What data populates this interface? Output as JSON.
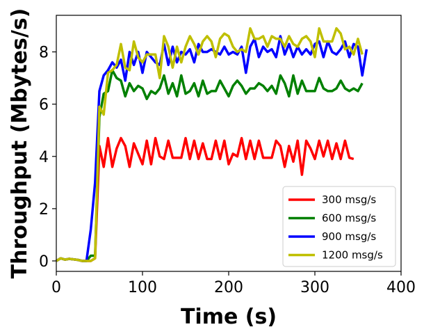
{
  "chart_data": {
    "type": "line",
    "title": "",
    "xlabel": "Time (s)",
    "ylabel": "Throughput (Mbytes/s)",
    "xlim": [
      0,
      400
    ],
    "ylim": [
      -0.4,
      9.4
    ],
    "xticks": [
      0,
      100,
      200,
      300,
      400
    ],
    "yticks": [
      0,
      2,
      4,
      6,
      8
    ],
    "grid": false,
    "legend_position": "bottom-right",
    "series": [
      {
        "name": "300 msg/s",
        "color": "#ff0000",
        "x": [
          0,
          5,
          10,
          15,
          20,
          25,
          30,
          35,
          40,
          45,
          50,
          55,
          60,
          65,
          70,
          75,
          80,
          85,
          90,
          95,
          100,
          105,
          110,
          115,
          120,
          125,
          130,
          135,
          140,
          145,
          150,
          155,
          160,
          165,
          170,
          175,
          180,
          185,
          190,
          195,
          200,
          205,
          210,
          215,
          220,
          225,
          230,
          235,
          240,
          245,
          250,
          255,
          260,
          265,
          270,
          275,
          280,
          285,
          290,
          295,
          300,
          305,
          310,
          315,
          320,
          325,
          330,
          335,
          340,
          345
        ],
        "y": [
          0,
          0.1,
          0.05,
          0.08,
          0.06,
          0.04,
          0,
          0,
          0,
          0.1,
          4.4,
          3.6,
          4.7,
          3.6,
          4.3,
          4.7,
          4.4,
          3.6,
          4.5,
          4.1,
          3.7,
          4.6,
          3.7,
          4.7,
          4.0,
          3.9,
          4.6,
          3.95,
          3.95,
          3.95,
          4.7,
          3.9,
          4.6,
          3.9,
          4.5,
          3.9,
          3.9,
          4.6,
          3.9,
          4.6,
          3.7,
          4.1,
          4.0,
          4.7,
          3.9,
          4.6,
          3.9,
          4.6,
          3.95,
          3.95,
          3.95,
          4.6,
          4.4,
          3.6,
          4.4,
          3.8,
          4.6,
          3.3,
          4.6,
          4.3,
          3.9,
          4.6,
          4.0,
          4.6,
          3.9,
          4.5,
          3.9,
          4.6,
          3.95,
          3.9
        ]
      },
      {
        "name": "600 msg/s",
        "color": "#008000",
        "x": [
          0,
          5,
          10,
          15,
          20,
          25,
          30,
          35,
          40,
          45,
          50,
          55,
          60,
          65,
          70,
          75,
          80,
          85,
          90,
          95,
          100,
          105,
          110,
          115,
          120,
          125,
          130,
          135,
          140,
          145,
          150,
          155,
          160,
          165,
          170,
          175,
          180,
          185,
          190,
          195,
          200,
          205,
          210,
          215,
          220,
          225,
          230,
          235,
          240,
          245,
          250,
          255,
          260,
          265,
          270,
          275,
          280,
          285,
          290,
          295,
          300,
          305,
          310,
          315,
          320,
          325,
          330,
          335,
          340,
          345,
          350,
          355
        ],
        "y": [
          0,
          0.1,
          0.05,
          0.08,
          0.06,
          0.04,
          0,
          0,
          0.2,
          0.2,
          5.5,
          6.4,
          6.5,
          7.3,
          7.0,
          6.9,
          6.3,
          6.8,
          6.5,
          6.7,
          6.6,
          6.2,
          6.5,
          6.4,
          6.6,
          7.1,
          6.4,
          6.8,
          6.3,
          7.1,
          6.4,
          6.5,
          6.8,
          6.3,
          6.9,
          6.4,
          6.5,
          6.5,
          6.9,
          6.6,
          6.3,
          6.7,
          6.9,
          6.7,
          6.4,
          6.6,
          6.6,
          6.8,
          6.7,
          6.5,
          6.7,
          6.4,
          7.1,
          6.8,
          6.3,
          7.1,
          6.4,
          6.9,
          6.5,
          6.5,
          6.5,
          7.0,
          6.6,
          6.5,
          6.5,
          6.6,
          6.9,
          6.6,
          6.5,
          6.6,
          6.5,
          6.8
        ]
      },
      {
        "name": "900 msg/s",
        "color": "#0000ff",
        "x": [
          0,
          5,
          10,
          15,
          20,
          25,
          30,
          35,
          40,
          45,
          50,
          55,
          60,
          65,
          70,
          75,
          80,
          85,
          90,
          95,
          100,
          105,
          110,
          115,
          120,
          125,
          130,
          135,
          140,
          145,
          150,
          155,
          160,
          165,
          170,
          175,
          180,
          185,
          190,
          195,
          200,
          205,
          210,
          215,
          220,
          225,
          230,
          235,
          240,
          245,
          250,
          255,
          260,
          265,
          270,
          275,
          280,
          285,
          290,
          295,
          300,
          305,
          310,
          315,
          320,
          325,
          330,
          335,
          340,
          345,
          350,
          355,
          360
        ],
        "y": [
          0,
          0.1,
          0.05,
          0.08,
          0.06,
          0.04,
          0,
          0,
          1.2,
          3.0,
          6.5,
          7.1,
          7.3,
          7.6,
          7.4,
          7.7,
          6.9,
          8.0,
          7.5,
          8.0,
          7.2,
          8.0,
          7.8,
          7.6,
          7.5,
          8.3,
          7.5,
          8.2,
          7.6,
          8.0,
          7.9,
          8.1,
          7.6,
          8.3,
          8.0,
          8.0,
          8.1,
          8.0,
          7.9,
          8.2,
          7.9,
          8.0,
          7.9,
          8.2,
          7.2,
          8.2,
          8.5,
          7.8,
          8.2,
          8.0,
          8.1,
          7.8,
          8.6,
          7.9,
          8.3,
          7.8,
          8.2,
          7.9,
          8.1,
          7.9,
          8.3,
          8.4,
          7.8,
          8.4,
          8.0,
          7.9,
          8.1,
          8.4,
          7.8,
          8.3,
          8.2,
          7.1,
          8.1
        ]
      },
      {
        "name": "1200 msg/s",
        "color": "#bfbf00",
        "x": [
          0,
          5,
          10,
          15,
          20,
          25,
          30,
          35,
          40,
          45,
          50,
          55,
          60,
          65,
          70,
          75,
          80,
          85,
          90,
          95,
          100,
          105,
          110,
          115,
          120,
          125,
          130,
          135,
          140,
          145,
          150,
          155,
          160,
          165,
          170,
          175,
          180,
          185,
          190,
          195,
          200,
          205,
          210,
          215,
          220,
          225,
          230,
          235,
          240,
          245,
          250,
          255,
          260,
          265,
          270,
          275,
          280,
          285,
          290,
          295,
          300,
          305,
          310,
          315,
          320,
          325,
          330,
          335,
          340,
          345,
          350,
          355
        ],
        "y": [
          0,
          0.1,
          0.05,
          0.08,
          0.06,
          0.04,
          0,
          0,
          0,
          0.1,
          5.9,
          5.6,
          7.2,
          7.3,
          7.5,
          8.3,
          7.4,
          7.3,
          8.4,
          7.8,
          7.6,
          7.9,
          7.9,
          7.9,
          7.0,
          8.6,
          8.2,
          7.4,
          8.2,
          7.6,
          8.2,
          8.6,
          8.3,
          7.9,
          8.4,
          8.6,
          8.4,
          7.8,
          8.5,
          8.7,
          8.6,
          8.2,
          8.0,
          8.1,
          8.0,
          8.9,
          8.5,
          8.5,
          8.6,
          8.2,
          8.6,
          8.5,
          8.5,
          8.2,
          8.6,
          8.3,
          8.2,
          8.5,
          8.6,
          8.4,
          7.8,
          8.9,
          8.4,
          8.4,
          8.4,
          8.9,
          8.7,
          8.1,
          8.2,
          7.9,
          8.5,
          7.9
        ]
      }
    ]
  }
}
